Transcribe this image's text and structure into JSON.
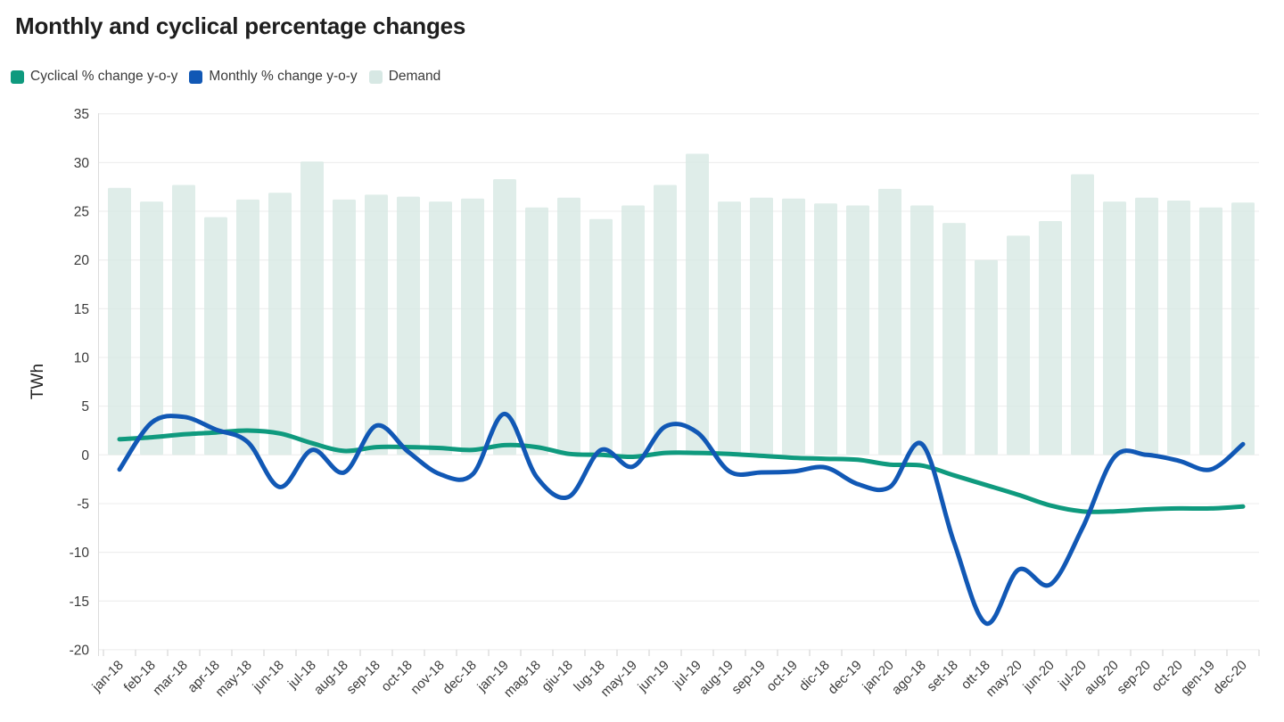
{
  "title": "Monthly and cyclical percentage changes",
  "legend": {
    "items": [
      {
        "label": "Cyclical % change y-o-y",
        "color": "#0f9a7e"
      },
      {
        "label": "Monthly % change y-o-y",
        "color": "#1158b5"
      },
      {
        "label": "Demand",
        "color": "#d7e8e4"
      }
    ]
  },
  "y_axis": {
    "label": "TWh",
    "ticks": [
      35,
      30,
      25,
      20,
      15,
      10,
      5,
      0,
      -5,
      -10,
      -15,
      -20
    ]
  },
  "chart_data": {
    "type": "composed",
    "title": "Monthly and cyclical percentage changes",
    "ylabel": "TWh",
    "ylim": [
      -20,
      35
    ],
    "grid": true,
    "legend_position": "top-left",
    "categories": [
      "jan-18",
      "feb-18",
      "mar-18",
      "apr-18",
      "may-18",
      "jun-18",
      "jul-18",
      "aug-18",
      "sep-18",
      "oct-18",
      "nov-18",
      "dec-18",
      "jan-19",
      "mag-18",
      "giu-18",
      "lug-18",
      "may-19",
      "jun-19",
      "jul-19",
      "aug-19",
      "sep-19",
      "oct-19",
      "dic-18",
      "dec-19",
      "jan-20",
      "ago-18",
      "set-18",
      "ott-18",
      "may-20",
      "jun-20",
      "jul-20",
      "aug-20",
      "sep-20",
      "oct-20",
      "gen-19",
      "dec-20"
    ],
    "series": [
      {
        "name": "Demand",
        "type": "bar",
        "color": "#d7e8e4",
        "values": [
          27.4,
          26.0,
          27.7,
          24.4,
          26.2,
          26.9,
          30.1,
          26.2,
          26.7,
          26.5,
          26.0,
          26.3,
          28.3,
          25.4,
          26.4,
          24.2,
          25.6,
          27.7,
          30.9,
          26.0,
          26.4,
          26.3,
          25.8,
          25.6,
          27.3,
          25.6,
          23.8,
          20.0,
          22.5,
          24.0,
          28.8,
          26.0,
          26.4,
          26.1,
          25.4,
          25.9
        ]
      },
      {
        "name": "Cyclical % change y-o-y",
        "type": "line",
        "color": "#0f9a7e",
        "values": [
          1.6,
          1.8,
          2.1,
          2.3,
          2.5,
          2.2,
          1.2,
          0.4,
          0.8,
          0.8,
          0.7,
          0.5,
          1.0,
          0.8,
          0.1,
          0.0,
          -0.2,
          0.2,
          0.2,
          0.1,
          -0.1,
          -0.3,
          -0.4,
          -0.5,
          -1.0,
          -1.1,
          -2.1,
          -3.1,
          -4.1,
          -5.2,
          -5.8,
          -5.8,
          -5.6,
          -5.5,
          -5.5,
          -5.3
        ]
      },
      {
        "name": "Monthly % change y-o-y",
        "type": "line",
        "color": "#1158b5",
        "values": [
          -1.5,
          3.3,
          3.9,
          2.6,
          1.3,
          -3.3,
          0.5,
          -1.8,
          3.0,
          0.3,
          -2.0,
          -2.0,
          4.2,
          -2.3,
          -4.3,
          0.5,
          -1.2,
          2.9,
          2.3,
          -1.7,
          -1.8,
          -1.7,
          -1.3,
          -3.0,
          -3.3,
          1.1,
          -9.0,
          -17.3,
          -11.8,
          -13.3,
          -7.5,
          -0.2,
          0.0,
          -0.6,
          -1.5,
          1.1
        ]
      }
    ]
  }
}
